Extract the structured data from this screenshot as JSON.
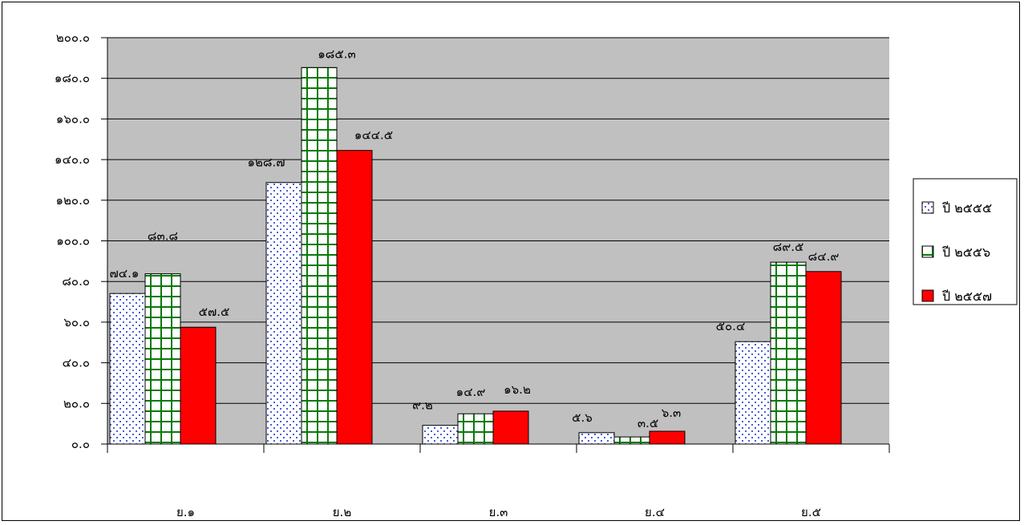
{
  "chart_data": {
    "type": "bar",
    "categories": [
      "ย.๑",
      "ย.๒",
      "ย.๓",
      "ย.๔",
      "ย.๕"
    ],
    "series": [
      {
        "name": "ปี ๒๕๕๕",
        "values": [
          74.1,
          128.7,
          9.2,
          5.6,
          50.4
        ],
        "labels": [
          "๗๔.๑",
          "๑๒๘.๗",
          "๙.๒",
          "๕.๖",
          "๕๐.๔"
        ],
        "pattern": "dots",
        "color": "#4a5ed8"
      },
      {
        "name": "ปี ๒๕๕๖",
        "values": [
          83.8,
          185.3,
          14.9,
          3.5,
          89.5
        ],
        "labels": [
          "๘๓.๘",
          "๑๘๕.๓",
          "๑๔.๙",
          "๓.๕",
          "๘๙.๕"
        ],
        "pattern": "grid",
        "color": "#0a7a0a"
      },
      {
        "name": "ปี ๒๕๕๗",
        "values": [
          57.5,
          144.5,
          16.2,
          6.3,
          84.9
        ],
        "labels": [
          "๕๗.๕",
          "๑๔๔.๕",
          "๑๖.๒",
          "๖.๓",
          "๘๔.๙"
        ],
        "pattern": "solid",
        "color": "#ff0000"
      }
    ],
    "ylim": [
      0,
      200
    ],
    "yticks": [
      0,
      20,
      40,
      60,
      80,
      100,
      120,
      140,
      160,
      180,
      200
    ],
    "ytick_labels": [
      "๐.๐",
      "๒๐.๐",
      "๔๐.๐",
      "๖๐.๐",
      "๘๐.๐",
      "๑๐๐.๐",
      "๑๒๐.๐",
      "๑๔๐.๐",
      "๑๖๐.๐",
      "๑๘๐.๐",
      "๒๐๐.๐"
    ],
    "plot_background": "#c0c0c0",
    "grid": true,
    "legend_position": "right",
    "title": "",
    "xlabel": "",
    "ylabel": ""
  }
}
